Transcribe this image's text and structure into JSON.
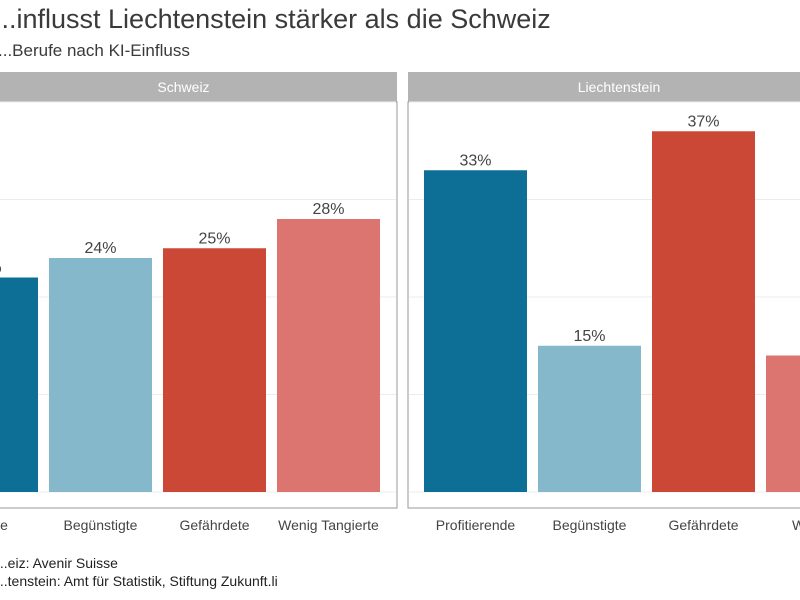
{
  "title": "...influsst Liechtenstein stärker als die Schweiz",
  "subtitle": "...Berufe nach KI-Einfluss",
  "chart_data": [
    {
      "type": "bar",
      "panel": "Schweiz",
      "categories": [
        "Profitierende",
        "Begünstigte",
        "Gefährdete",
        "Wenig Tangierte"
      ],
      "values": [
        22,
        24,
        25,
        28
      ],
      "labels": [
        "…%",
        "24%",
        "25%",
        "28%"
      ],
      "ylim": [
        0,
        40
      ],
      "colors": [
        "#0d6f96",
        "#86b8cb",
        "#cc4836",
        "#dc756f"
      ],
      "grid": true
    },
    {
      "type": "bar",
      "panel": "Liechtenstein",
      "categories": [
        "Profitierende",
        "Begünstigte",
        "Gefährdete",
        "Wenig Tangierte"
      ],
      "values": [
        33,
        15,
        37,
        14
      ],
      "labels": [
        "33%",
        "15%",
        "37%",
        ""
      ],
      "ylim": [
        0,
        40
      ],
      "colors": [
        "#0d6f96",
        "#86b8cb",
        "#cc4836",
        "#dc756f"
      ],
      "grid": true
    }
  ],
  "tick_labels_visible": {
    "Schweiz": [
      "...ende",
      "Begünstigte",
      "Gefährdete",
      "Wenig Tangierte"
    ],
    "Liechtenstein": [
      "Profitierende",
      "Begünstigte",
      "Gefährdete",
      "Wenig..."
    ]
  },
  "sources": [
    "...eiz: Avenir Suisse",
    "...tenstein: Amt für Statistik, Stiftung Zukunft.li"
  ],
  "colors": {
    "strip": "#b3b3b3",
    "panel_border": "#999999",
    "grid": "#ececec"
  }
}
